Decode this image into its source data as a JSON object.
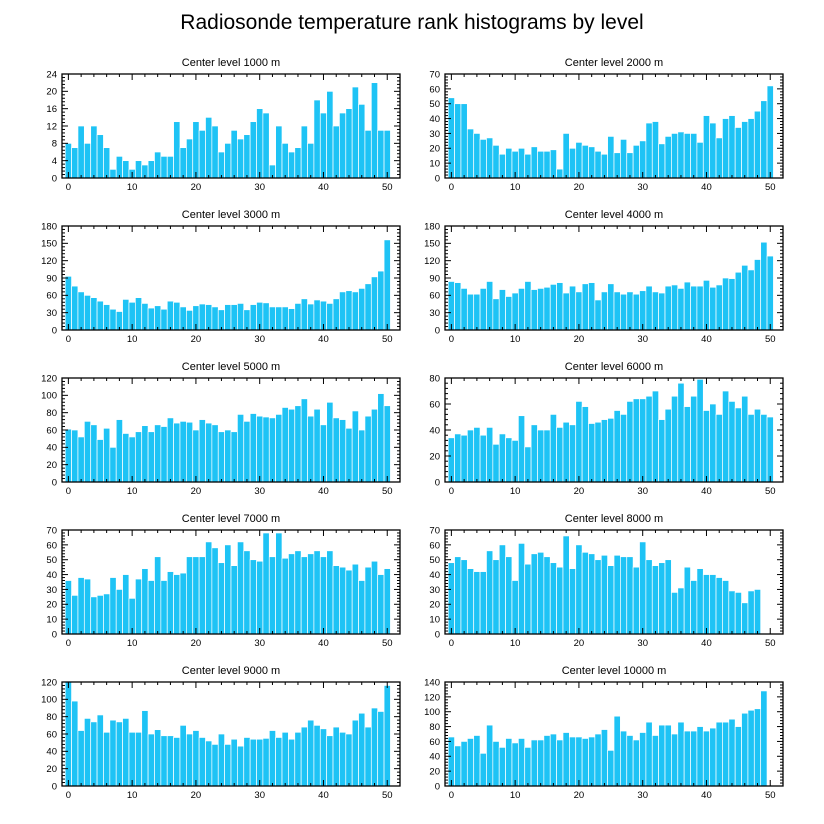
{
  "figure_title": "Radiosonde temperature rank histograms by level",
  "colors": {
    "bar": "#1EC3F5",
    "frame": "#000000",
    "background": "#ffffff"
  },
  "chart_data": [
    {
      "type": "bar",
      "title": "Center level 1000 m",
      "xlim": [
        -1,
        52
      ],
      "ylim": [
        0,
        24
      ],
      "xticks": [
        0,
        10,
        20,
        30,
        40,
        50
      ],
      "yticks": [
        0,
        4,
        8,
        12,
        16,
        20,
        24
      ],
      "values": [
        8,
        7,
        12,
        8,
        12,
        10,
        7,
        2,
        5,
        4,
        2,
        4,
        3,
        4,
        6,
        5,
        5,
        13,
        7,
        9,
        13,
        11,
        14,
        12,
        6,
        8,
        11,
        9,
        10,
        13,
        16,
        15,
        3,
        12,
        8,
        6,
        7,
        12,
        8,
        18,
        15,
        20,
        12,
        15,
        16,
        21,
        17,
        11,
        22,
        11,
        11
      ]
    },
    {
      "type": "bar",
      "title": "Center level 2000 m",
      "xlim": [
        -1,
        52
      ],
      "ylim": [
        0,
        70
      ],
      "xticks": [
        0,
        10,
        20,
        30,
        40,
        50
      ],
      "yticks": [
        0,
        10,
        20,
        30,
        40,
        50,
        60,
        70
      ],
      "values": [
        54,
        50,
        50,
        33,
        30,
        26,
        27,
        22,
        16,
        20,
        18,
        20,
        16,
        21,
        18,
        18,
        19,
        6,
        30,
        20,
        24,
        22,
        21,
        18,
        16,
        28,
        17,
        26,
        17,
        22,
        25,
        37,
        38,
        23,
        28,
        30,
        31,
        30,
        30,
        24,
        42,
        37,
        27,
        40,
        42,
        34,
        38,
        40,
        45,
        52,
        62
      ]
    },
    {
      "type": "bar",
      "title": "Center level 3000 m",
      "xlim": [
        -1,
        52
      ],
      "ylim": [
        0,
        180
      ],
      "xticks": [
        0,
        10,
        20,
        30,
        40,
        50
      ],
      "yticks": [
        0,
        30,
        60,
        90,
        120,
        150,
        180
      ],
      "values": [
        93,
        76,
        66,
        60,
        56,
        50,
        44,
        36,
        32,
        53,
        48,
        56,
        46,
        38,
        42,
        36,
        50,
        48,
        40,
        34,
        42,
        45,
        44,
        40,
        35,
        44,
        44,
        46,
        35,
        44,
        48,
        47,
        40,
        40,
        40,
        37,
        46,
        54,
        45,
        52,
        50,
        46,
        54,
        66,
        68,
        66,
        72,
        80,
        92,
        102,
        156
      ]
    },
    {
      "type": "bar",
      "title": "Center level 4000 m",
      "xlim": [
        -1,
        52
      ],
      "ylim": [
        0,
        180
      ],
      "xticks": [
        0,
        10,
        20,
        30,
        40,
        50
      ],
      "yticks": [
        0,
        30,
        60,
        90,
        120,
        150,
        180
      ],
      "values": [
        84,
        82,
        72,
        62,
        62,
        72,
        84,
        54,
        70,
        58,
        64,
        72,
        84,
        70,
        72,
        74,
        79,
        82,
        64,
        76,
        66,
        80,
        82,
        52,
        66,
        80,
        66,
        62,
        66,
        62,
        68,
        76,
        66,
        64,
        76,
        78,
        72,
        83,
        76,
        76,
        86,
        74,
        78,
        90,
        89,
        100,
        112,
        104,
        122,
        152,
        128
      ]
    },
    {
      "type": "bar",
      "title": "Center level 5000 m",
      "xlim": [
        -1,
        52
      ],
      "ylim": [
        0,
        120
      ],
      "xticks": [
        0,
        10,
        20,
        30,
        40,
        50
      ],
      "yticks": [
        0,
        20,
        40,
        60,
        80,
        100,
        120
      ],
      "values": [
        61,
        60,
        52,
        70,
        66,
        49,
        62,
        40,
        72,
        56,
        52,
        58,
        65,
        58,
        66,
        64,
        74,
        68,
        70,
        69,
        60,
        72,
        68,
        66,
        58,
        60,
        58,
        78,
        70,
        79,
        76,
        75,
        74,
        78,
        86,
        84,
        88,
        96,
        76,
        84,
        66,
        92,
        74,
        72,
        62,
        82,
        60,
        76,
        84,
        102,
        88
      ]
    },
    {
      "type": "bar",
      "title": "Center level 6000 m",
      "xlim": [
        -1,
        52
      ],
      "ylim": [
        0,
        80
      ],
      "xticks": [
        0,
        10,
        20,
        30,
        40,
        50
      ],
      "yticks": [
        0,
        20,
        40,
        60,
        80
      ],
      "values": [
        34,
        37,
        36,
        40,
        42,
        36,
        42,
        29,
        37,
        34,
        32,
        51,
        27,
        44,
        40,
        40,
        52,
        42,
        46,
        44,
        62,
        58,
        45,
        46,
        48,
        49,
        55,
        52,
        62,
        64,
        64,
        66,
        70,
        48,
        56,
        66,
        76,
        58,
        66,
        79,
        55,
        60,
        52,
        70,
        62,
        57,
        66,
        52,
        56,
        52,
        50
      ]
    },
    {
      "type": "bar",
      "title": "Center level 7000 m",
      "xlim": [
        -1,
        52
      ],
      "ylim": [
        0,
        70
      ],
      "xticks": [
        0,
        10,
        20,
        30,
        40,
        50
      ],
      "yticks": [
        0,
        10,
        20,
        30,
        40,
        50,
        60,
        70
      ],
      "values": [
        36,
        26,
        38,
        37,
        25,
        26,
        27,
        38,
        30,
        40,
        24,
        37,
        44,
        36,
        52,
        36,
        42,
        40,
        41,
        52,
        52,
        52,
        62,
        58,
        48,
        60,
        46,
        62,
        56,
        50,
        49,
        68,
        52,
        68,
        51,
        54,
        56,
        52,
        54,
        56,
        52,
        56,
        46,
        45,
        43,
        47,
        36,
        45,
        49,
        40,
        44
      ]
    },
    {
      "type": "bar",
      "title": "Center level 8000 m",
      "xlim": [
        -1,
        52
      ],
      "ylim": [
        0,
        70
      ],
      "xticks": [
        0,
        10,
        20,
        30,
        40,
        50
      ],
      "yticks": [
        0,
        10,
        20,
        30,
        40,
        50,
        60,
        70
      ],
      "values": [
        48,
        52,
        50,
        44,
        42,
        42,
        56,
        50,
        60,
        52,
        36,
        61,
        47,
        54,
        55,
        52,
        48,
        45,
        66,
        44,
        60,
        55,
        54,
        50,
        53,
        46,
        53,
        52,
        52,
        45,
        62,
        50,
        46,
        48,
        50,
        28,
        31,
        45,
        36,
        44,
        40,
        40,
        38,
        36,
        29,
        28,
        21,
        29,
        30
      ]
    },
    {
      "type": "bar",
      "title": "Center level 9000 m",
      "xlim": [
        -1,
        52
      ],
      "ylim": [
        0,
        120
      ],
      "xticks": [
        0,
        10,
        20,
        30,
        40,
        50
      ],
      "yticks": [
        0,
        20,
        40,
        60,
        80,
        100,
        120
      ],
      "values": [
        120,
        98,
        64,
        78,
        74,
        82,
        62,
        76,
        74,
        78,
        62,
        62,
        87,
        60,
        65,
        58,
        58,
        56,
        70,
        60,
        64,
        56,
        52,
        48,
        60,
        48,
        54,
        46,
        56,
        54,
        54,
        55,
        64,
        56,
        62,
        54,
        62,
        68,
        76,
        70,
        66,
        58,
        68,
        62,
        60,
        76,
        84,
        68,
        90,
        86,
        116
      ]
    },
    {
      "type": "bar",
      "title": "Center level 10000 m",
      "xlim": [
        -1,
        52
      ],
      "ylim": [
        0,
        140
      ],
      "xticks": [
        0,
        10,
        20,
        30,
        40,
        50
      ],
      "yticks": [
        0,
        20,
        40,
        60,
        80,
        100,
        120,
        140
      ],
      "values": [
        66,
        54,
        60,
        64,
        68,
        44,
        82,
        60,
        52,
        64,
        58,
        64,
        52,
        62,
        62,
        68,
        70,
        62,
        72,
        66,
        66,
        64,
        66,
        70,
        76,
        48,
        94,
        74,
        68,
        62,
        72,
        86,
        68,
        82,
        82,
        70,
        86,
        74,
        74,
        80,
        74,
        78,
        86,
        86,
        90,
        80,
        98,
        102,
        104,
        128
      ]
    }
  ]
}
